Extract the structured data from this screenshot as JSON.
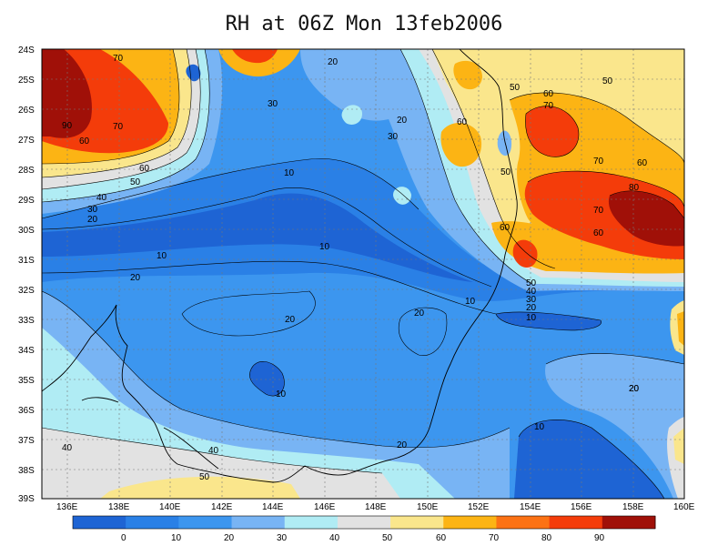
{
  "title": "RH at 06Z Mon 13feb2006",
  "map": {
    "lat_labels": [
      "24S",
      "25S",
      "26S",
      "27S",
      "28S",
      "29S",
      "30S",
      "31S",
      "32S",
      "33S",
      "34S",
      "35S",
      "36S",
      "37S",
      "38S",
      "39S"
    ],
    "lon_labels": [
      "136E",
      "138E",
      "140E",
      "142E",
      "144E",
      "146E",
      "148E",
      "150E",
      "152E",
      "154E",
      "156E",
      "158E",
      "160E"
    ],
    "contour_labels": [
      "70",
      "90",
      "70",
      "60",
      "60",
      "50",
      "40",
      "30",
      "20",
      "20",
      "30",
      "10",
      "20",
      "30",
      "20",
      "10",
      "10",
      "20",
      "20",
      "20",
      "10",
      "10",
      "40",
      "40",
      "50",
      "20",
      "50",
      "60",
      "60",
      "70",
      "50",
      "60",
      "70",
      "80",
      "70",
      "60",
      "60",
      "50",
      "40",
      "30",
      "20",
      "10",
      "20",
      "10",
      "50"
    ]
  },
  "colorbar": {
    "ticks": [
      "0",
      "10",
      "20",
      "30",
      "40",
      "50",
      "60",
      "70",
      "80",
      "90"
    ],
    "colors": [
      "#1e64d4",
      "#2a80e6",
      "#3c96ef",
      "#78b4f4",
      "#b0ecf4",
      "#e2e2e2",
      "#fae68c",
      "#fcb414",
      "#fc7214",
      "#f43c0a",
      "#a01008"
    ]
  }
}
